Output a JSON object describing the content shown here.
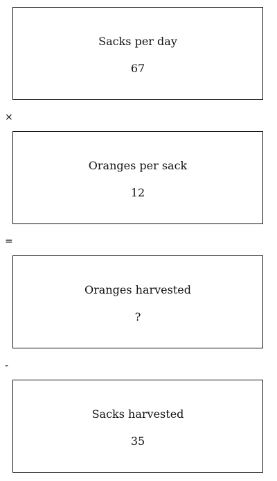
{
  "cards": [
    {
      "label": "Sacks per day",
      "value": "67"
    },
    {
      "label": "Oranges per sack",
      "value": "12"
    },
    {
      "label": "Oranges harvested",
      "value": "?"
    },
    {
      "label": "Sacks harvested",
      "value": "35"
    }
  ],
  "operators": [
    "×",
    "=",
    "-"
  ]
}
